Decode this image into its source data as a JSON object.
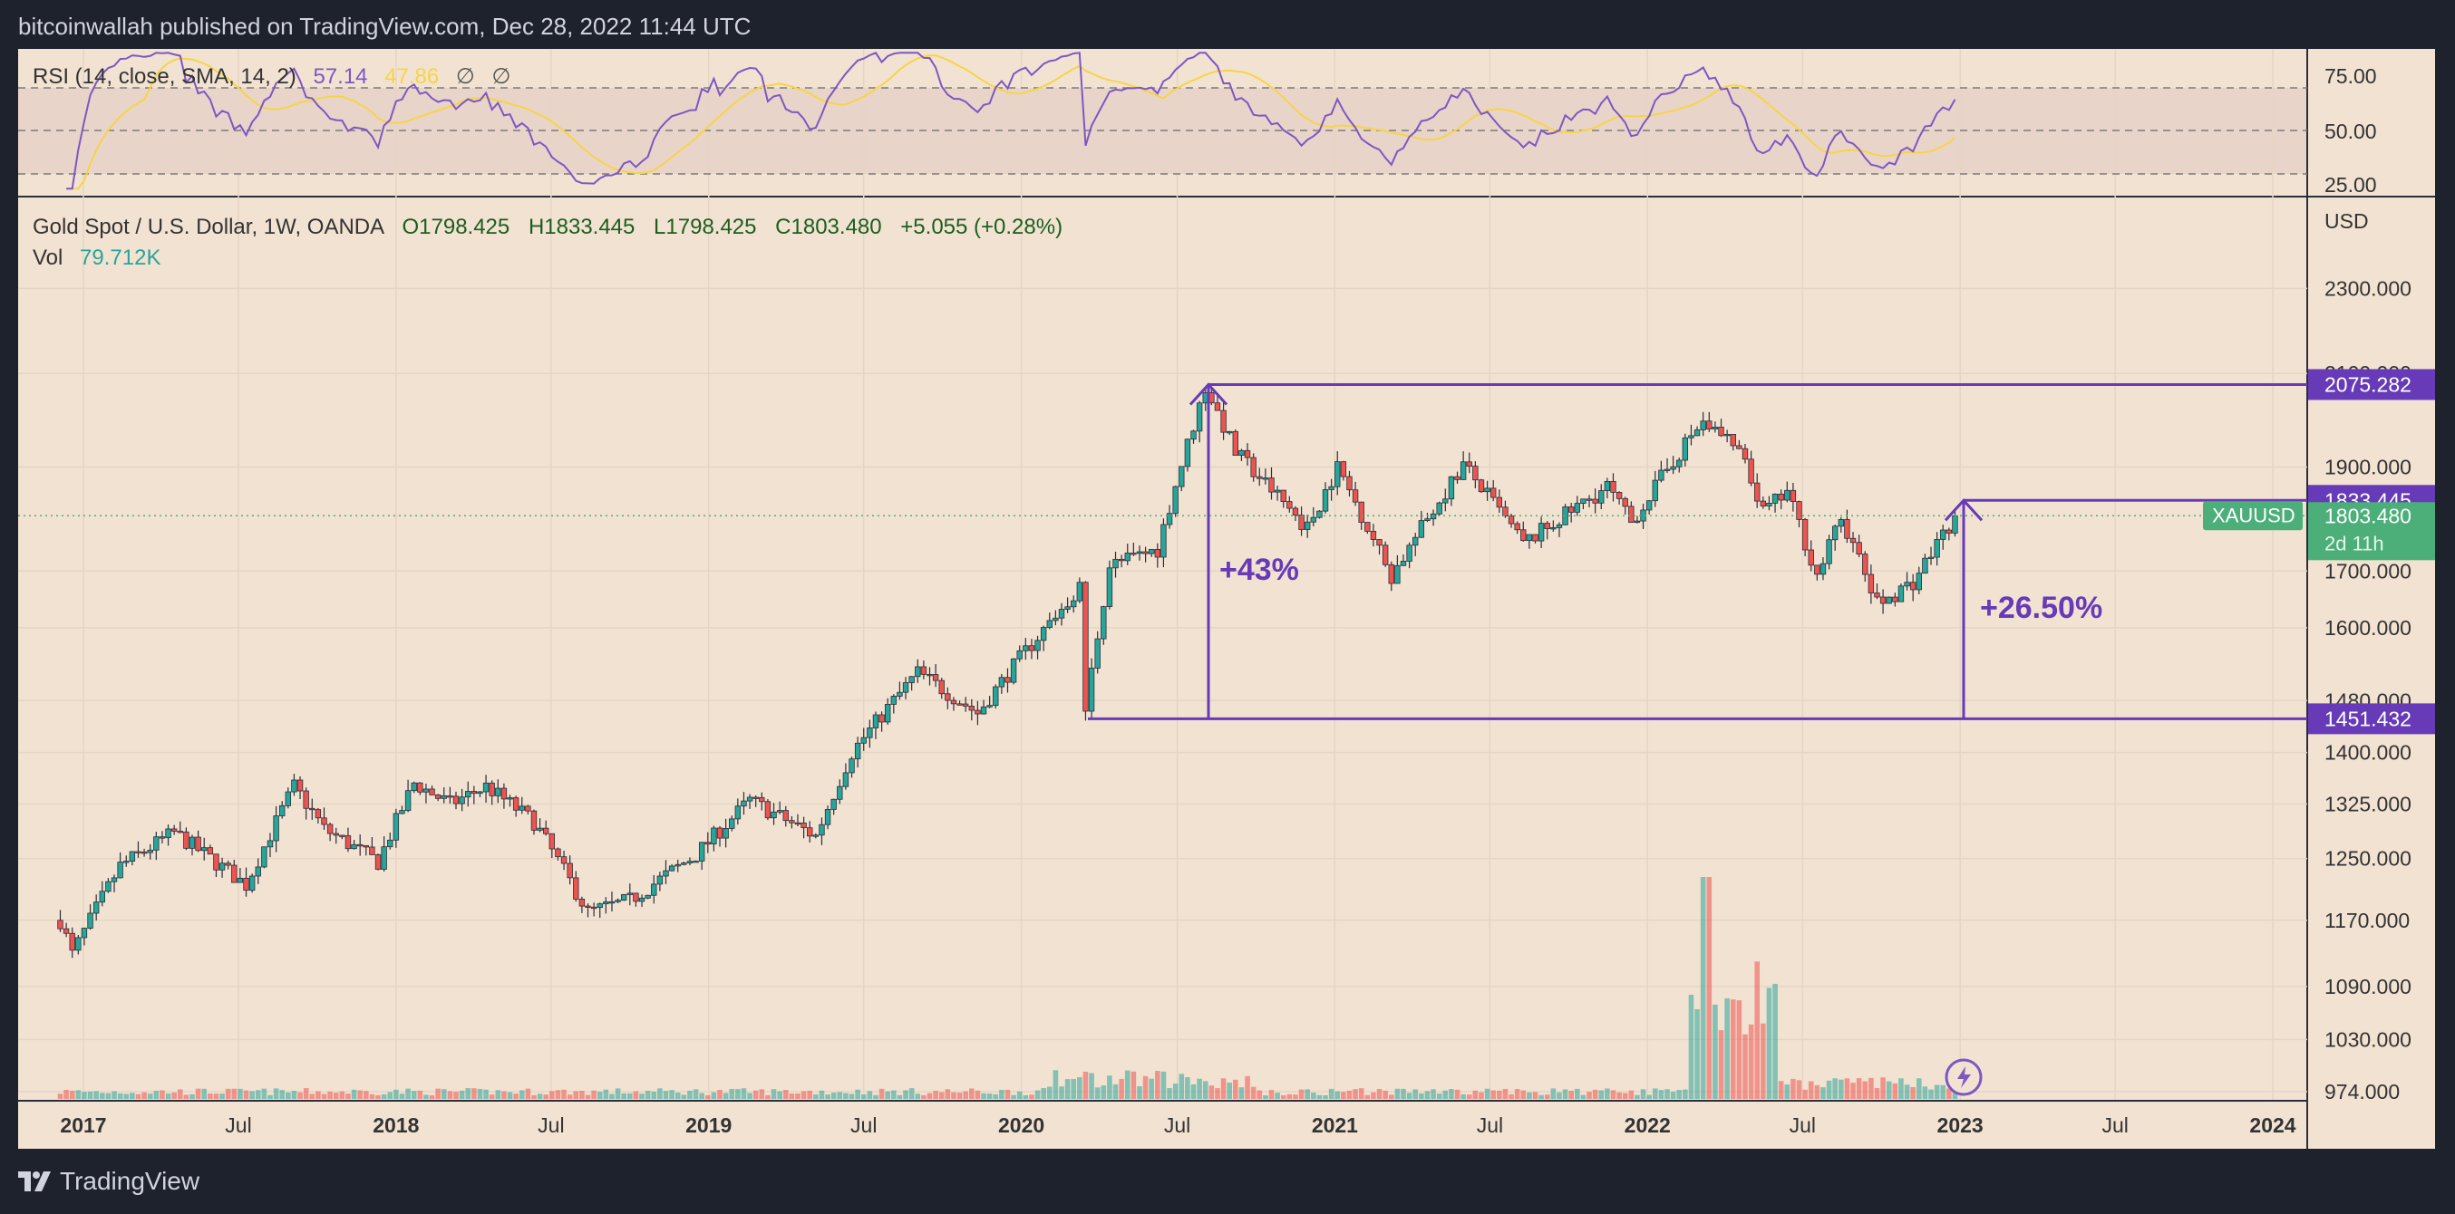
{
  "header": {
    "published": "bitcoinwallah published on TradingView.com, Dec 28, 2022 11:44 UTC"
  },
  "rsi": {
    "label": "RSI (14, close, SMA, 14, 2)",
    "value": "57.14",
    "sma_value": "47.86",
    "extra1": "∅",
    "extra2": "∅",
    "ticks": [
      "75.00",
      "50.00",
      "25.00"
    ]
  },
  "legend": {
    "symbol": "Gold Spot / U.S. Dollar, 1W, OANDA",
    "open": "O1798.425",
    "high": "H1833.445",
    "low": "L1798.425",
    "close": "C1803.480",
    "change": "+5.055 (+0.28%)",
    "vol_label": "Vol",
    "vol_value": "79.712K"
  },
  "axis": {
    "currency": "USD",
    "price_ticks": [
      "2300.000",
      "2100.000",
      "1900.000",
      "1700.000",
      "1600.000",
      "1480.000",
      "1400.000",
      "1325.000",
      "1250.000",
      "1170.000",
      "1090.000",
      "1030.000",
      "974.000"
    ],
    "time_ticks": [
      {
        "label": "2017",
        "bold": true
      },
      {
        "label": "Jul",
        "bold": false
      },
      {
        "label": "2018",
        "bold": true
      },
      {
        "label": "Jul",
        "bold": false
      },
      {
        "label": "2019",
        "bold": true
      },
      {
        "label": "Jul",
        "bold": false
      },
      {
        "label": "2020",
        "bold": true
      },
      {
        "label": "Jul",
        "bold": false
      },
      {
        "label": "2021",
        "bold": true
      },
      {
        "label": "Jul",
        "bold": false
      },
      {
        "label": "2022",
        "bold": true
      },
      {
        "label": "Jul",
        "bold": false
      },
      {
        "label": "2023",
        "bold": true
      },
      {
        "label": "Jul",
        "bold": false
      },
      {
        "label": "2024",
        "bold": true
      }
    ]
  },
  "price_labels": {
    "top_level": "2075.282",
    "mid_level": "1833.445",
    "current_symbol": "XAUUSD",
    "current_price": "1803.480",
    "countdown": "2d 11h",
    "bottom_level": "1451.432"
  },
  "annotations": {
    "left_move": "+43%",
    "right_move": "+26.50%"
  },
  "brand": {
    "name": "TradingView"
  },
  "colors": {
    "up": "#26a69a",
    "down": "#ef5350",
    "rsi_line": "#7e57c2",
    "rsi_sma": "#f5d547",
    "drawing": "#673ab7",
    "pane_bg": "#f2e2d2",
    "current_label": "#4caf7a"
  },
  "chart_data": {
    "type": "candlestick",
    "timeframe": "1W",
    "instrument": "XAUUSD",
    "ohlc_current": {
      "open": 1798.425,
      "high": 1833.445,
      "low": 1798.425,
      "close": 1803.48
    },
    "price_path": [
      [
        "2016-12-05",
        1170
      ],
      [
        "2016-12-19",
        1128
      ],
      [
        "2017-02-13",
        1240
      ],
      [
        "2017-04-17",
        1285
      ],
      [
        "2017-07-10",
        1215
      ],
      [
        "2017-09-04",
        1350
      ],
      [
        "2017-10-09",
        1290
      ],
      [
        "2017-12-11",
        1245
      ],
      [
        "2018-01-22",
        1355
      ],
      [
        "2018-03-05",
        1325
      ],
      [
        "2018-04-16",
        1350
      ],
      [
        "2018-06-11",
        1300
      ],
      [
        "2018-08-13",
        1180
      ],
      [
        "2018-10-01",
        1195
      ],
      [
        "2018-12-17",
        1255
      ],
      [
        "2019-02-18",
        1330
      ],
      [
        "2019-05-06",
        1280
      ],
      [
        "2019-06-17",
        1400
      ],
      [
        "2019-09-02",
        1525
      ],
      [
        "2019-11-11",
        1460
      ],
      [
        "2020-01-06",
        1560
      ],
      [
        "2020-03-09",
        1670
      ],
      [
        "2020-03-16",
        1465
      ],
      [
        "2020-04-13",
        1710
      ],
      [
        "2020-06-08",
        1740
      ],
      [
        "2020-08-03",
        2070
      ],
      [
        "2020-09-07",
        1930
      ],
      [
        "2020-11-30",
        1780
      ],
      [
        "2021-01-04",
        1900
      ],
      [
        "2021-03-08",
        1690
      ],
      [
        "2021-05-31",
        1905
      ],
      [
        "2021-08-09",
        1750
      ],
      [
        "2021-11-15",
        1860
      ],
      [
        "2021-12-13",
        1790
      ],
      [
        "2022-03-07",
        2000
      ],
      [
        "2022-04-18",
        1930
      ],
      [
        "2022-05-16",
        1810
      ],
      [
        "2022-06-13",
        1850
      ],
      [
        "2022-07-18",
        1690
      ],
      [
        "2022-08-15",
        1800
      ],
      [
        "2022-09-26",
        1640
      ],
      [
        "2022-11-07",
        1680
      ],
      [
        "2022-12-26",
        1803.48
      ]
    ],
    "levels": [
      2075.282,
      1833.445,
      1451.432
    ],
    "rsi": {
      "period": 14,
      "sma": 14,
      "value": 57.14,
      "sma_value": 47.86,
      "bands": [
        25,
        50,
        75
      ]
    },
    "volume_last": "79.712K",
    "annotations": [
      "+43%",
      "+26.50%"
    ],
    "y_scale": "log",
    "ylim": [
      974,
      2330
    ]
  }
}
